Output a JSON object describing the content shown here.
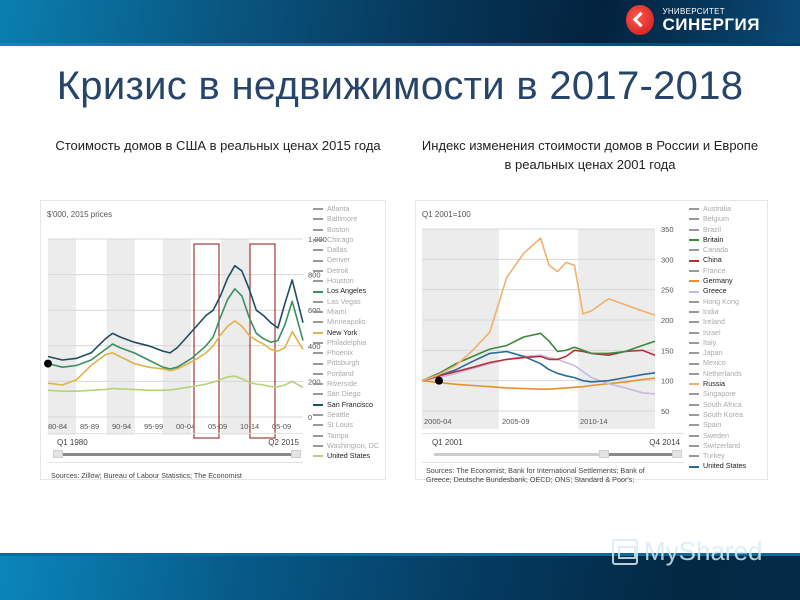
{
  "header": {
    "logo_small": "УНИВЕРСИТЕТ",
    "logo_big": "СИНЕРГИЯ"
  },
  "slide": {
    "title": "Кризис в недвижимости в 2017-2018",
    "subtitle_left": "Стоимость домов в США в реальных ценах 2015 года",
    "subtitle_right": "Индекс изменения стоимости домов в России и Европе в реальных ценах 2001 года"
  },
  "watermark": {
    "text": "MyShared"
  },
  "left_panel": {
    "unit_label": "$'000, 2015 prices",
    "slider_start": "Q1 1980",
    "slider_end": "Q2 2015",
    "sources": "Sources: Zillow; Bureau of Labour Statistics; The Economist"
  },
  "right_panel": {
    "unit_label": "Q1 2001=100",
    "slider_start": "Q1 2001",
    "slider_end": "Q4 2014",
    "sources_line1": "Sources: The Economist; Bank for International Settlements; Bank of",
    "sources_line2": "Greece; Deutsche Bundesbank; OECD; ONS; Standard & Poor's;"
  },
  "chart_data": [
    {
      "type": "line",
      "title": "Стоимость домов в США в реальных ценах 2015 года",
      "ylabel": "$'000, 2015 prices",
      "xlabel": "",
      "ylim": [
        0,
        1000
      ],
      "yticks": [
        "0",
        "200",
        "400",
        "600",
        "800",
        "1,000"
      ],
      "categories": [
        "80-84",
        "85-89",
        "90-94",
        "95-99",
        "00-04",
        "05-09",
        "10-14",
        "05-09"
      ],
      "x": [
        1980,
        1982,
        1984,
        1986,
        1988,
        1989,
        1990,
        1992,
        1994,
        1996,
        1997,
        1998,
        2000,
        2002,
        2003,
        2004,
        2005,
        2006,
        2007,
        2008,
        2009,
        2010,
        2011,
        2012,
        2013,
        2014,
        2015.5
      ],
      "grid": true,
      "legend_position": "right",
      "highlight_boxes": [
        [
          "2005",
          "2009"
        ],
        [
          "2013",
          "2015"
        ]
      ],
      "series": [
        {
          "name": "San Francisco",
          "color": "#1f4e5f",
          "values": [
            340,
            320,
            330,
            360,
            440,
            470,
            450,
            420,
            400,
            370,
            360,
            390,
            480,
            570,
            600,
            680,
            780,
            850,
            820,
            720,
            600,
            570,
            530,
            500,
            640,
            770,
            530
          ]
        },
        {
          "name": "Los Angeles",
          "color": "#3a9060",
          "values": [
            300,
            280,
            290,
            320,
            380,
            410,
            390,
            360,
            320,
            280,
            270,
            280,
            330,
            400,
            450,
            560,
            660,
            720,
            680,
            560,
            470,
            440,
            420,
            430,
            520,
            650,
            430
          ]
        },
        {
          "name": "New York",
          "color": "#e0b24a",
          "values": [
            190,
            180,
            210,
            290,
            350,
            360,
            340,
            300,
            280,
            270,
            260,
            270,
            310,
            360,
            400,
            460,
            510,
            540,
            510,
            460,
            430,
            410,
            380,
            370,
            390,
            480,
            380
          ]
        },
        {
          "name": "United States",
          "color": "#b8d27a",
          "values": [
            150,
            145,
            145,
            150,
            155,
            160,
            158,
            155,
            150,
            150,
            152,
            158,
            170,
            185,
            195,
            210,
            225,
            230,
            215,
            195,
            185,
            180,
            170,
            170,
            180,
            200,
            165
          ]
        }
      ],
      "legend": [
        "Atlanta",
        "Baltimore",
        "Boston",
        "Chicago",
        "Dallas",
        "Denver",
        "Detroit",
        "Houston",
        "Los Angeles",
        "Las Vegas",
        "Miami",
        "Minneapolis",
        "New York",
        "Philadelphia",
        "Phoenix",
        "Pittsburgh",
        "Portland",
        "Riverside",
        "San Diego",
        "San Francisco",
        "Seattle",
        "St Louis",
        "Tampa",
        "Washington, DC",
        "United States"
      ],
      "legend_highlighted": [
        "Los Angeles",
        "New York",
        "San Francisco",
        "United States"
      ]
    },
    {
      "type": "line",
      "title": "Индекс изменения стоимости домов в России и Европе в реальных ценах 2001 года",
      "ylabel": "Q1 2001=100",
      "xlabel": "",
      "ylim": [
        50,
        350
      ],
      "yticks": [
        "50",
        "100",
        "150",
        "200",
        "250",
        "300",
        "350"
      ],
      "categories": [
        "2000-04",
        "2005-09",
        "2010-14"
      ],
      "x": [
        2001,
        2002,
        2003,
        2004,
        2005,
        2006,
        2007,
        2008,
        2008.5,
        2009,
        2009.5,
        2010,
        2010.5,
        2011,
        2012,
        2013,
        2014,
        2014.75
      ],
      "grid": true,
      "legend_position": "right",
      "series": [
        {
          "name": "Russia",
          "color": "#f2b06a",
          "values": [
            100,
            110,
            125,
            150,
            180,
            270,
            310,
            335,
            290,
            280,
            295,
            290,
            210,
            215,
            235,
            225,
            215,
            208
          ]
        },
        {
          "name": "Britain",
          "color": "#3a8a3a",
          "values": [
            100,
            112,
            128,
            140,
            152,
            158,
            172,
            178,
            165,
            148,
            150,
            155,
            150,
            145,
            145,
            148,
            158,
            165
          ]
        },
        {
          "name": "China",
          "color": "#b5303a",
          "values": [
            100,
            108,
            115,
            122,
            130,
            135,
            138,
            140,
            135,
            135,
            140,
            150,
            148,
            145,
            142,
            148,
            150,
            142
          ]
        },
        {
          "name": "United States",
          "color": "#2a6a9a",
          "values": [
            100,
            108,
            118,
            132,
            145,
            148,
            140,
            128,
            118,
            112,
            108,
            105,
            100,
            98,
            100,
            105,
            110,
            113
          ]
        },
        {
          "name": "Greece",
          "color": "#c8b8e0",
          "values": [
            100,
            105,
            112,
            120,
            128,
            135,
            140,
            142,
            138,
            135,
            130,
            125,
            115,
            105,
            95,
            88,
            80,
            78
          ]
        },
        {
          "name": "Germany",
          "color": "#e8902a",
          "values": [
            100,
            97,
            94,
            92,
            90,
            88,
            87,
            86,
            86,
            87,
            88,
            89,
            90,
            92,
            95,
            98,
            102,
            104
          ]
        }
      ],
      "legend": [
        "Australia",
        "Belgium",
        "Brazil",
        "Britain",
        "Canada",
        "China",
        "France",
        "Germany",
        "Greece",
        "Hong Kong",
        "India",
        "Ireland",
        "Israel",
        "Italy",
        "Japan",
        "Mexico",
        "Netherlands",
        "Russia",
        "Singapore",
        "South Africa",
        "South Korea",
        "Spain",
        "Sweden",
        "Switzerland",
        "Turkey",
        "United States"
      ],
      "legend_highlighted": [
        "Britain",
        "China",
        "Germany",
        "Greece",
        "Russia",
        "United States"
      ]
    }
  ]
}
